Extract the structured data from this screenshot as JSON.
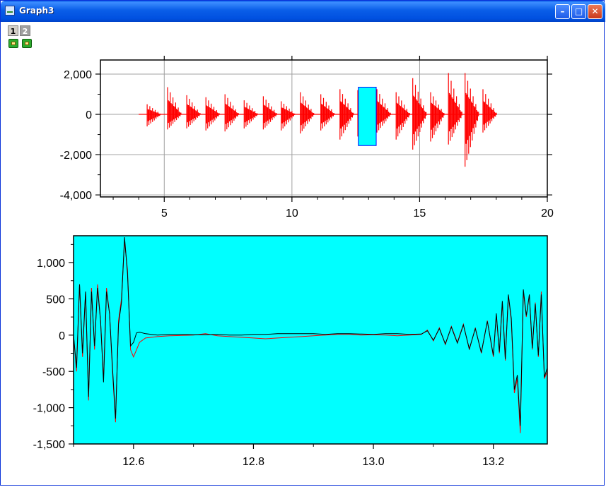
{
  "window": {
    "title": "Graph3",
    "controls": {
      "minimize": "minimize",
      "maximize": "maximize",
      "close": "close"
    }
  },
  "layers": {
    "tabs": [
      "1",
      "2"
    ],
    "active_tab": "1"
  },
  "colors": {
    "data_red": "#ff0000",
    "data_black": "#000000",
    "zoom_fill": "#00ffff",
    "zoom_border": "#0000ff",
    "grid": "#a0a0a0"
  },
  "chart_data": [
    {
      "type": "line",
      "title": "",
      "xlabel": "",
      "ylabel": "",
      "xlim": [
        2.5,
        20
      ],
      "ylim": [
        -4100,
        2700
      ],
      "x_ticks": [
        5,
        10,
        15,
        20
      ],
      "x_tick_labels": [
        "5",
        "10",
        "15",
        "20"
      ],
      "y_ticks": [
        2000,
        0,
        -2000,
        -4000
      ],
      "y_tick_labels": [
        "2,000",
        "0",
        "-2,000",
        "-4,000"
      ],
      "grid": true,
      "signal_x_range": [
        4.0,
        18.0
      ],
      "series": [
        {
          "color": "#ff0000",
          "burst_x": [
            4.4,
            5.2,
            5.95,
            6.7,
            7.45,
            8.2,
            8.95,
            9.65,
            10.4,
            11.2,
            11.95,
            12.65,
            13.4,
            14.15,
            14.8,
            15.5,
            16.2,
            16.85,
            17.55
          ],
          "burst_max": [
            500,
            1350,
            950,
            850,
            1000,
            700,
            900,
            650,
            1100,
            1000,
            1250,
            1200,
            1250,
            1100,
            1800,
            1100,
            2050,
            2050,
            1250
          ],
          "burst_min": [
            -600,
            -750,
            -700,
            -800,
            -850,
            -700,
            -750,
            -800,
            -950,
            -800,
            -1250,
            -1100,
            -900,
            -1250,
            -1750,
            -1350,
            -1500,
            -2600,
            -900
          ]
        }
      ],
      "zoom_region": {
        "x": [
          12.6,
          13.3
        ],
        "y": [
          -1550,
          1350
        ]
      }
    },
    {
      "type": "line",
      "title": "",
      "xlabel": "",
      "ylabel": "",
      "xlim": [
        12.5,
        13.29
      ],
      "ylim": [
        -1500,
        1370
      ],
      "x_ticks": [
        12.6,
        12.8,
        13.0,
        13.2
      ],
      "x_tick_labels": [
        "12.6",
        "12.8",
        "13.0",
        "13.2"
      ],
      "y_ticks": [
        1000,
        500,
        0,
        -500,
        -1000,
        -1500
      ],
      "y_tick_labels": [
        "1,000",
        "500",
        "0",
        "-500",
        "-1,000",
        "-1,500"
      ],
      "grid": false,
      "background": "#00ffff",
      "series": [
        {
          "color": "#ff0000",
          "x": [
            12.5,
            12.505,
            12.51,
            12.515,
            12.52,
            12.525,
            12.53,
            12.535,
            12.54,
            12.545,
            12.55,
            12.555,
            12.56,
            12.565,
            12.57,
            12.575,
            12.58,
            12.585,
            12.59,
            12.595,
            12.6,
            12.605,
            12.61,
            12.62,
            12.64,
            12.66,
            12.68,
            12.7,
            12.72,
            12.74,
            12.76,
            12.78,
            12.8,
            12.82,
            12.84,
            12.86,
            12.88,
            12.9,
            12.92,
            12.94,
            12.96,
            12.98,
            13.0,
            13.02,
            13.04,
            13.06,
            13.08,
            13.09,
            13.1,
            13.11,
            13.12,
            13.13,
            13.14,
            13.15,
            13.16,
            13.17,
            13.18,
            13.19,
            13.2,
            13.205,
            13.21,
            13.215,
            13.22,
            13.225,
            13.23,
            13.235,
            13.24,
            13.245,
            13.25,
            13.255,
            13.26,
            13.265,
            13.27,
            13.275,
            13.28,
            13.285,
            13.29
          ],
          "y": [
            0,
            -500,
            700,
            -300,
            600,
            -900,
            650,
            -200,
            700,
            200,
            -600,
            650,
            300,
            -500,
            -1200,
            200,
            500,
            1300,
            900,
            -200,
            -300,
            -200,
            -100,
            -40,
            -20,
            -10,
            -5,
            0,
            20,
            -10,
            -20,
            -30,
            -40,
            -50,
            -40,
            -30,
            -20,
            -10,
            0,
            10,
            10,
            0,
            5,
            0,
            -10,
            0,
            10,
            70,
            -80,
            100,
            -130,
            120,
            -100,
            150,
            -200,
            100,
            -250,
            200,
            -300,
            280,
            -250,
            450,
            -350,
            550,
            200,
            -800,
            -600,
            -1350,
            600,
            250,
            550,
            -200,
            450,
            -300,
            600,
            -600,
            -500
          ]
        },
        {
          "color": "#000000",
          "x": [
            12.5,
            12.505,
            12.51,
            12.515,
            12.52,
            12.525,
            12.53,
            12.535,
            12.54,
            12.545,
            12.55,
            12.555,
            12.56,
            12.565,
            12.57,
            12.575,
            12.58,
            12.585,
            12.59,
            12.595,
            12.6,
            12.605,
            12.61,
            12.62,
            12.64,
            12.66,
            12.68,
            12.7,
            12.72,
            12.74,
            12.76,
            12.78,
            12.8,
            12.82,
            12.84,
            12.86,
            12.88,
            12.9,
            12.92,
            12.94,
            12.96,
            12.98,
            13.0,
            13.02,
            13.04,
            13.06,
            13.08,
            13.09,
            13.1,
            13.11,
            13.12,
            13.13,
            13.14,
            13.15,
            13.16,
            13.17,
            13.18,
            13.19,
            13.2,
            13.205,
            13.21,
            13.215,
            13.22,
            13.225,
            13.23,
            13.235,
            13.24,
            13.245,
            13.25,
            13.255,
            13.26,
            13.265,
            13.27,
            13.275,
            13.28,
            13.285,
            13.29
          ],
          "y": [
            0,
            -450,
            700,
            -250,
            600,
            -850,
            600,
            -150,
            650,
            200,
            -650,
            600,
            300,
            -450,
            -1150,
            150,
            450,
            1350,
            850,
            -150,
            -100,
            30,
            40,
            20,
            0,
            10,
            10,
            5,
            5,
            10,
            0,
            0,
            10,
            10,
            20,
            20,
            20,
            20,
            10,
            20,
            20,
            15,
            10,
            20,
            20,
            10,
            15,
            60,
            -70,
            90,
            -120,
            110,
            -110,
            140,
            -190,
            90,
            -240,
            190,
            -280,
            300,
            -230,
            470,
            -330,
            560,
            230,
            -750,
            -550,
            -1250,
            630,
            270,
            560,
            -180,
            430,
            -280,
            560,
            -580,
            -450
          ]
        }
      ]
    }
  ]
}
